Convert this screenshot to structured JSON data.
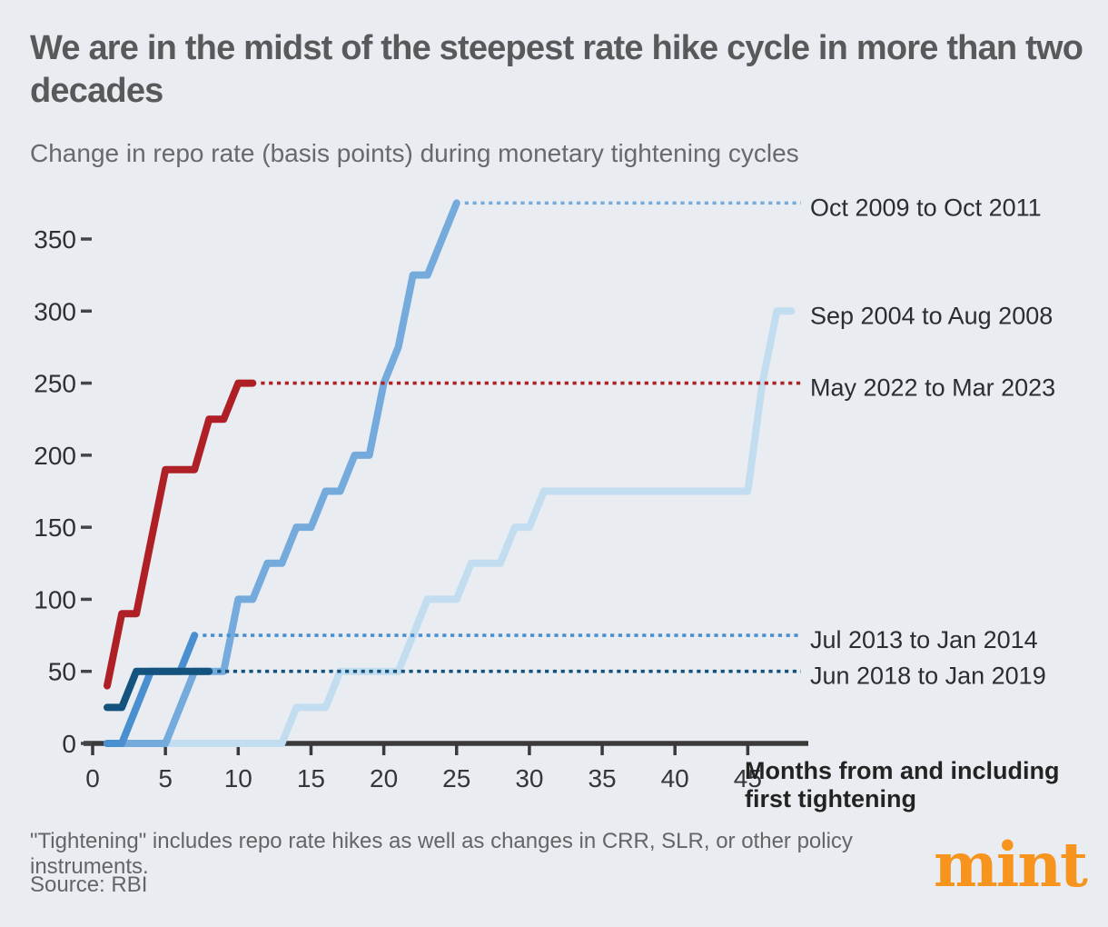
{
  "header": {
    "title": "We are in the midst of the steepest rate hike cycle in more than two decades",
    "subtitle": "Change in repo rate (basis points) during monetary tightening cycles"
  },
  "footer": {
    "footnote": "\"Tightening\" includes repo rate hikes as well as changes in CRR, SLR, or other policy instruments.",
    "source": "Source: RBI",
    "logo_text": "mint",
    "logo_color": "#f7941e"
  },
  "chart_data": {
    "type": "line",
    "title": "We are in the midst of the steepest rate hike cycle in more than two decades",
    "subtitle": "Change in repo rate (basis points) during monetary tightening cycles",
    "xlabel": "Months from and including first tightening",
    "ylabel": "Change in repo rate (basis points)",
    "xlim": [
      0,
      49.5
    ],
    "ylim": [
      0,
      392
    ],
    "grid": false,
    "legend_position": "right-of-line-ends",
    "x_ticks": [
      0,
      5,
      10,
      15,
      20,
      25,
      30,
      35,
      40,
      45
    ],
    "y_ticks": [
      0,
      50,
      100,
      150,
      200,
      250,
      300,
      350
    ],
    "axis_color": "#3a3a3a",
    "tick_label_color": "#33363a",
    "series_label_color": "#2b2d30",
    "series": [
      {
        "name": "Sep 2004 to Aug 2008",
        "color": "#c1ddef",
        "end_value": 300,
        "dotted_leader": false,
        "points": [
          [
            1,
            0
          ],
          [
            13,
            0
          ],
          [
            14,
            25
          ],
          [
            16,
            25
          ],
          [
            17,
            50
          ],
          [
            21,
            50
          ],
          [
            22,
            75
          ],
          [
            23,
            100
          ],
          [
            25,
            100
          ],
          [
            26,
            125
          ],
          [
            28,
            125
          ],
          [
            29,
            150
          ],
          [
            30,
            150
          ],
          [
            31,
            175
          ],
          [
            45,
            175
          ],
          [
            46,
            250
          ],
          [
            47,
            300
          ],
          [
            48,
            300
          ]
        ]
      },
      {
        "name": "Oct 2009 to Oct 2011",
        "color": "#74aadc",
        "end_value": 375,
        "dotted_leader": true,
        "points": [
          [
            1,
            0
          ],
          [
            5,
            0
          ],
          [
            6,
            25
          ],
          [
            7,
            50
          ],
          [
            9,
            50
          ],
          [
            10,
            100
          ],
          [
            11,
            100
          ],
          [
            12,
            125
          ],
          [
            13,
            125
          ],
          [
            14,
            150
          ],
          [
            15,
            150
          ],
          [
            16,
            175
          ],
          [
            17,
            175
          ],
          [
            18,
            200
          ],
          [
            19,
            200
          ],
          [
            20,
            250
          ],
          [
            21,
            275
          ],
          [
            22,
            325
          ],
          [
            23,
            325
          ],
          [
            24,
            350
          ],
          [
            25,
            375
          ]
        ]
      },
      {
        "name": "Jul 2013 to Jan 2014",
        "color": "#4a90d0",
        "end_value": 75,
        "dotted_leader": true,
        "points": [
          [
            1,
            0
          ],
          [
            2,
            0
          ],
          [
            3,
            25
          ],
          [
            4,
            50
          ],
          [
            6,
            50
          ],
          [
            7,
            75
          ]
        ]
      },
      {
        "name": "Jun 2018 to Jan 2019",
        "color": "#15537f",
        "end_value": 50,
        "dotted_leader": true,
        "points": [
          [
            1,
            25
          ],
          [
            2,
            25
          ],
          [
            3,
            50
          ],
          [
            8,
            50
          ]
        ]
      },
      {
        "name": "May 2022 to Mar 2023",
        "color": "#af2026",
        "end_value": 250,
        "dotted_leader": true,
        "points": [
          [
            1,
            40
          ],
          [
            2,
            90
          ],
          [
            3,
            90
          ],
          [
            4,
            140
          ],
          [
            5,
            190
          ],
          [
            7,
            190
          ],
          [
            8,
            225
          ],
          [
            9,
            225
          ],
          [
            10,
            250
          ],
          [
            11,
            250
          ]
        ]
      }
    ]
  }
}
